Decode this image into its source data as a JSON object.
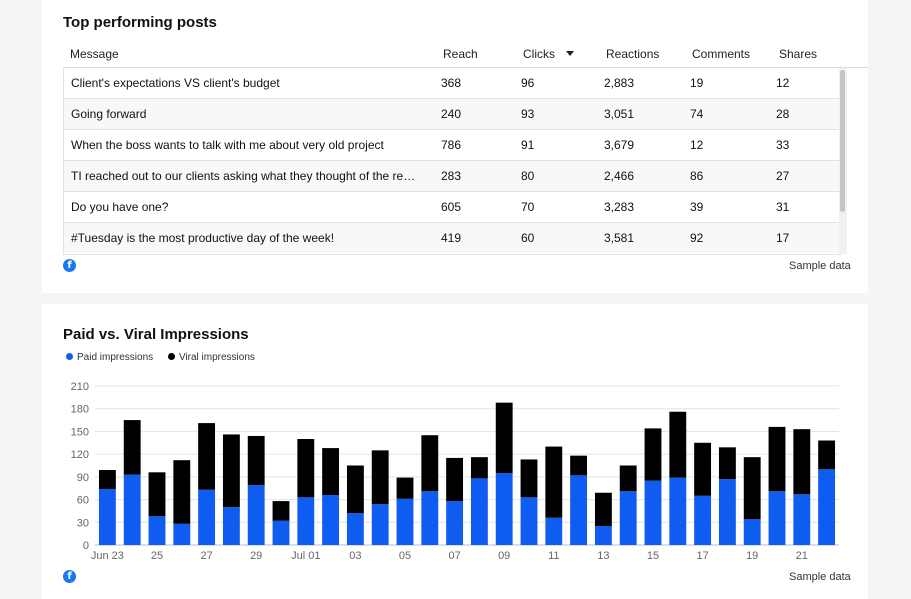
{
  "table_card": {
    "title": "Top performing posts",
    "columns": [
      "Message",
      "Reach",
      "Clicks",
      "Reactions",
      "Comments",
      "Shares"
    ],
    "rows": [
      [
        "Client's expectations VS client's budget",
        "368",
        "96",
        "2,883",
        "19",
        "12"
      ],
      [
        "Going forward",
        "240",
        "93",
        "3,051",
        "74",
        "28"
      ],
      [
        "When the boss wants to talk with me about very old project",
        "786",
        "91",
        "3,679",
        "12",
        "33"
      ],
      [
        "TI reached out to our clients asking what they thought of the report...",
        "283",
        "80",
        "2,466",
        "86",
        "27"
      ],
      [
        "Do you have one?",
        "605",
        "70",
        "3,283",
        "39",
        "31"
      ],
      [
        "#Tuesday is the most productive day of the week!",
        "419",
        "60",
        "3,581",
        "92",
        "17"
      ]
    ],
    "source_icon": "facebook-icon",
    "footer": "Sample data"
  },
  "chart_card": {
    "source_icon": "facebook-icon",
    "footer": "Sample data"
  },
  "chart_data": {
    "type": "bar",
    "stacked": true,
    "title": "Paid vs. Viral Impressions",
    "legend_position": "top-left",
    "grid": true,
    "ylim": [
      0,
      210
    ],
    "yticks": [
      0,
      30,
      60,
      90,
      120,
      150,
      180,
      210
    ],
    "x_tick_labels": [
      "Jun 23",
      "",
      "25",
      "",
      "27",
      "",
      "29",
      "",
      "Jul 01",
      "",
      "03",
      "",
      "05",
      "",
      "07",
      "",
      "09",
      "",
      "11",
      "",
      "13",
      "",
      "15",
      "",
      "17",
      "",
      "19",
      "",
      "21",
      ""
    ],
    "categories": [
      "Jun 23",
      "Jun 24",
      "Jun 25",
      "Jun 26",
      "Jun 27",
      "Jun 28",
      "Jun 29",
      "Jun 30",
      "Jul 01",
      "Jul 02",
      "Jul 03",
      "Jul 04",
      "Jul 05",
      "Jul 06",
      "Jul 07",
      "Jul 08",
      "Jul 09",
      "Jul 10",
      "Jul 11",
      "Jul 12",
      "Jul 13",
      "Jul 14",
      "Jul 15",
      "Jul 16",
      "Jul 17",
      "Jul 18",
      "Jul 19",
      "Jul 20",
      "Jul 21",
      "Jul 22"
    ],
    "series": [
      {
        "name": "Paid impressions",
        "color": "#0f5df0",
        "values": [
          74,
          93,
          38,
          28,
          73,
          50,
          79,
          32,
          63,
          66,
          42,
          54,
          61,
          71,
          58,
          88,
          95,
          63,
          36,
          92,
          25,
          71,
          85,
          89,
          65,
          87,
          34,
          71,
          67,
          100
        ]
      },
      {
        "name": "Viral impressions",
        "color": "#000000",
        "values": [
          25,
          72,
          58,
          84,
          88,
          96,
          65,
          26,
          77,
          62,
          63,
          71,
          28,
          74,
          57,
          28,
          93,
          50,
          94,
          26,
          44,
          34,
          69,
          87,
          70,
          42,
          82,
          85,
          86,
          38
        ]
      }
    ]
  }
}
